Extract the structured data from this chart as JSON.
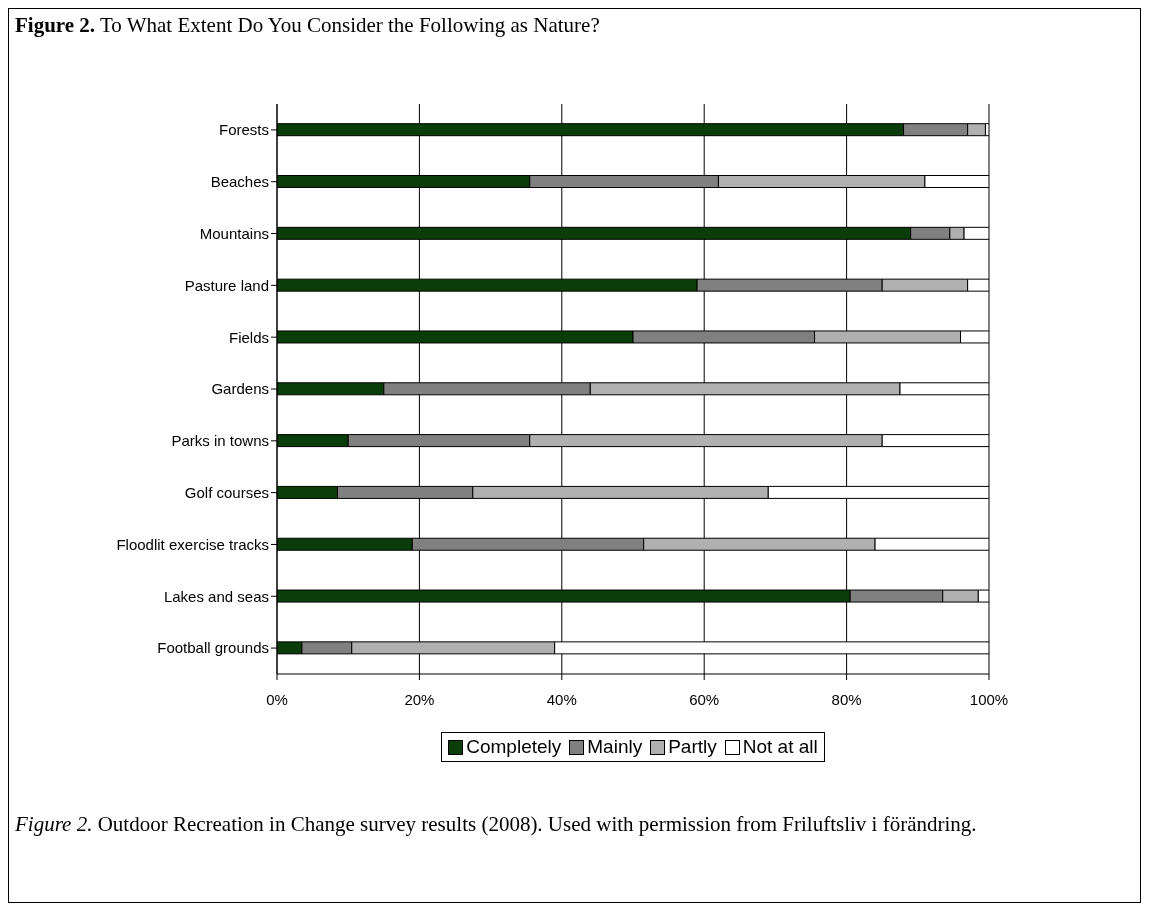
{
  "chart_data": {
    "type": "bar",
    "orientation": "horizontal",
    "stacked": true,
    "title": "Figure 2. To What Extent Do You Consider the Following as Nature?",
    "categories": [
      "Forests",
      "Beaches",
      "Mountains",
      "Pasture land",
      "Fields",
      "Gardens",
      "Parks in towns",
      "Golf courses",
      "Floodlit exercise tracks",
      "Lakes and seas",
      "Football grounds"
    ],
    "series": [
      {
        "name": "Completely",
        "color": "#0b3d0b",
        "values": [
          88,
          35.5,
          89,
          59,
          50,
          15,
          10,
          8.5,
          19,
          80.5,
          3.5
        ]
      },
      {
        "name": "Mainly",
        "color": "#808080",
        "values": [
          9,
          26.5,
          5.5,
          26,
          25.5,
          29,
          25.5,
          19,
          32.5,
          13,
          7
        ]
      },
      {
        "name": "Partly",
        "color": "#b0b0b0",
        "values": [
          2.5,
          29,
          2,
          12,
          20.5,
          43.5,
          49.5,
          41.5,
          32.5,
          5,
          28.5
        ]
      },
      {
        "name": "Not at all",
        "color": "#ffffff",
        "values": [
          0.5,
          9,
          3.5,
          3,
          4,
          12.5,
          15,
          31,
          16,
          1.5,
          61
        ]
      }
    ],
    "xlim": [
      0,
      100
    ],
    "xticks": [
      {
        "value": 0,
        "label": "0%"
      },
      {
        "value": 20,
        "label": "20%"
      },
      {
        "value": 40,
        "label": "40%"
      },
      {
        "value": 60,
        "label": "60%"
      },
      {
        "value": 80,
        "label": "80%"
      },
      {
        "value": 100,
        "label": "100%"
      }
    ],
    "grid": "x",
    "legend": "bottom",
    "annotations": [
      "Figure 2. Outdoor Recreation in Change survey results (2008). Used with permission from Friluftsliv i förändring."
    ]
  }
}
